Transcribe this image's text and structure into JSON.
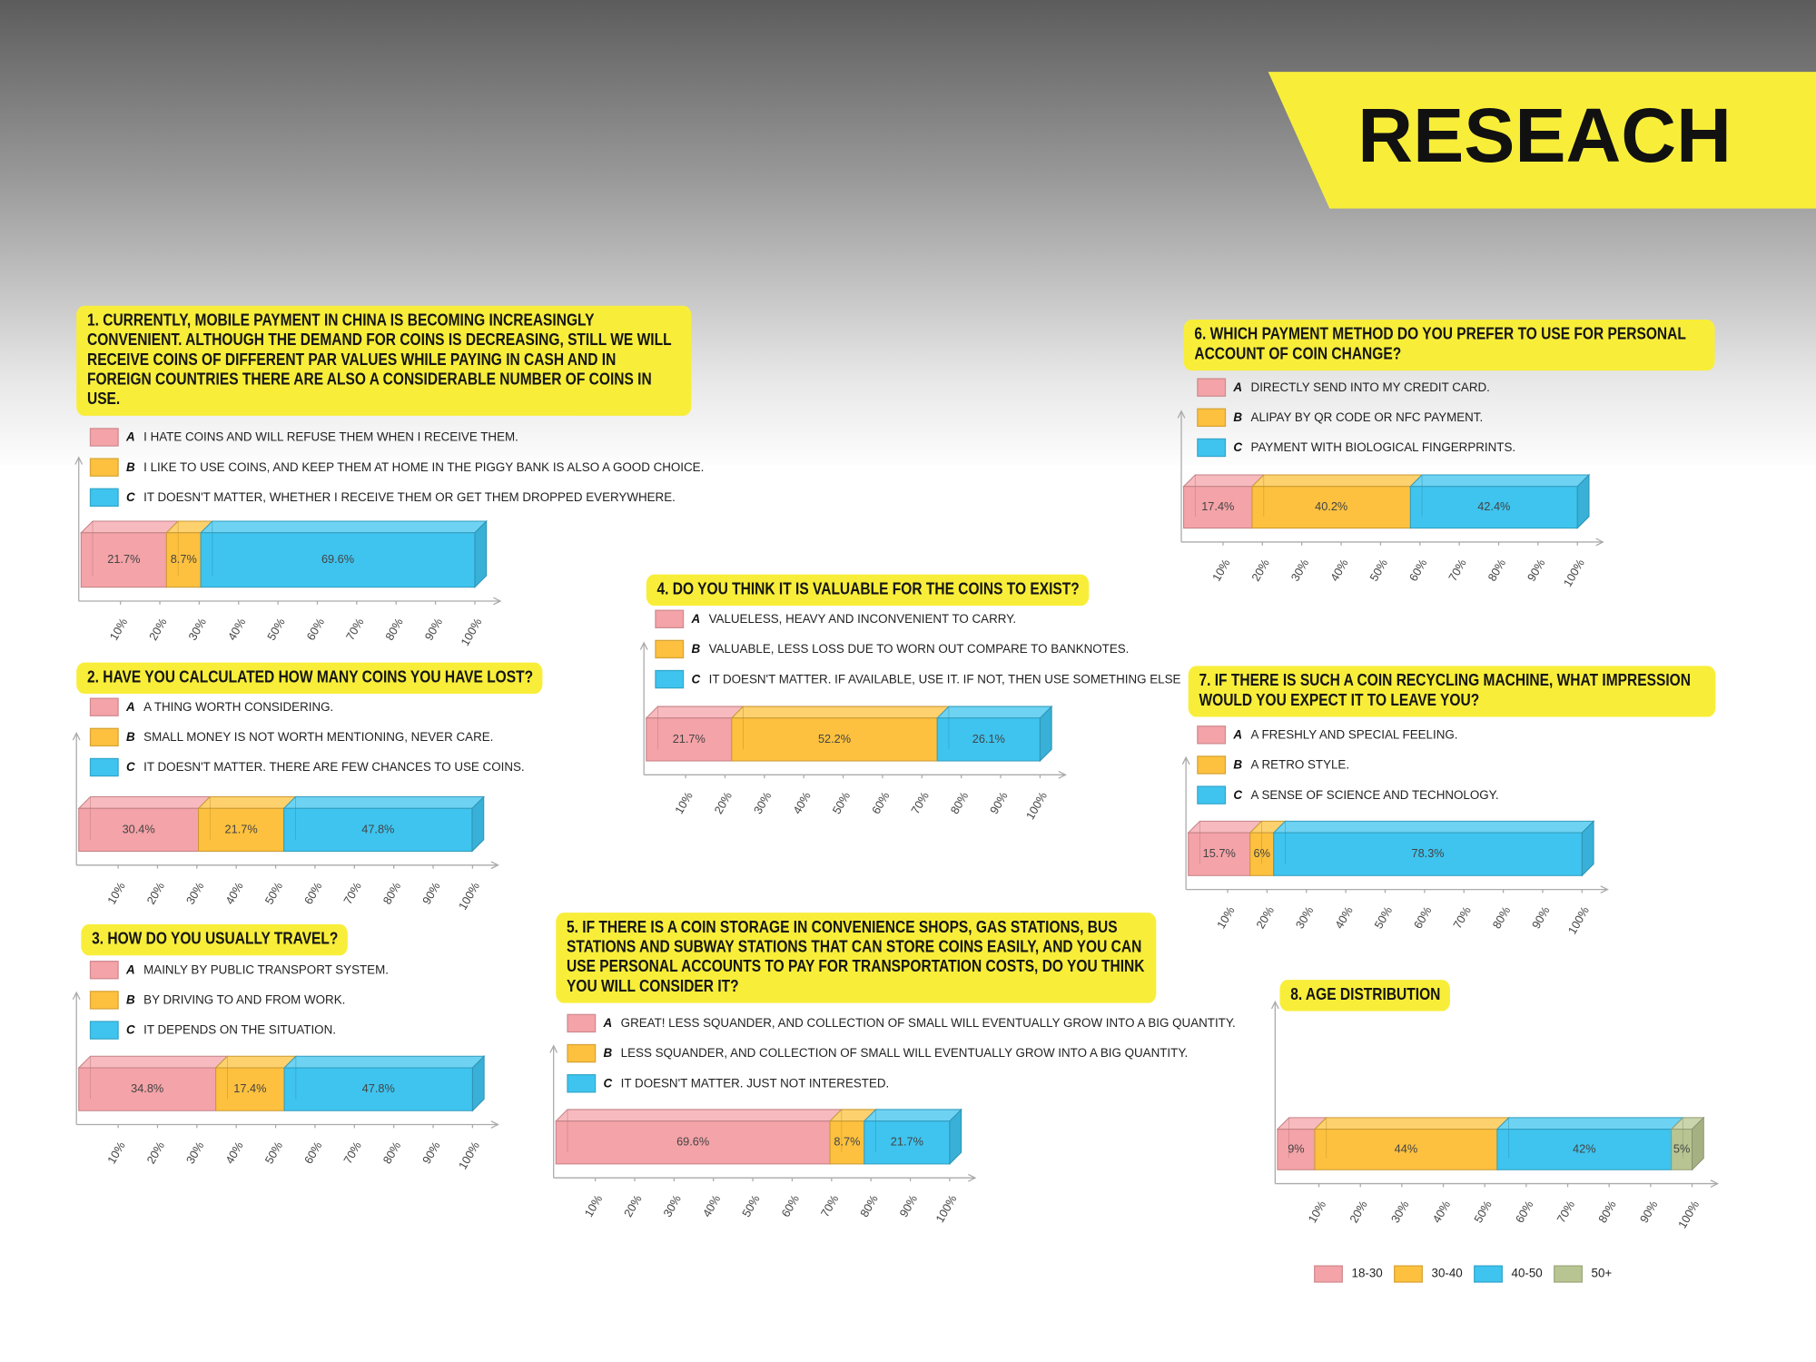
{
  "title": "RESEACH",
  "chart_data": [
    {
      "type": "bar",
      "orientation": "horizontal",
      "stacked": true,
      "title": "1. CURRENTLY, MOBILE PAYMENT IN CHINA IS BECOMING INCREASINGLY CONVENIENT. ALTHOUGH THE DEMAND FOR COINS IS DECREASING, STILL WE WILL RECEIVE COINS OF DIFFERENT PAR VALUES WHILE PAYING IN CASH AND IN FOREIGN COUNTRIES THERE ARE ALSO A CONSIDERABLE NUMBER OF COINS IN USE.",
      "xlim": [
        0,
        100
      ],
      "xticks": [
        {
          "value": 10,
          "label": "10%"
        },
        {
          "value": 20,
          "label": "20%"
        },
        {
          "value": 30,
          "label": "30%"
        },
        {
          "value": 40,
          "label": "40%"
        },
        {
          "value": 50,
          "label": "50%"
        },
        {
          "value": 60,
          "label": "60%"
        },
        {
          "value": 70,
          "label": "70%"
        },
        {
          "value": 80,
          "label": "80%"
        },
        {
          "value": 90,
          "label": "90%"
        },
        {
          "value": 100,
          "label": "100%"
        }
      ],
      "series": [
        {
          "letter": "A",
          "name": "I HATE COINS AND WILL REFUSE THEM WHEN I RECEIVE THEM.",
          "color": "#f4a3a8",
          "values": [
            21.7
          ],
          "value_labels": [
            "21.7%"
          ]
        },
        {
          "letter": "B",
          "name": "I LIKE TO USE COINS, AND KEEP THEM AT HOME IN THE PIGGY BANK IS ALSO A GOOD CHOICE.",
          "color": "#fdc13f",
          "values": [
            8.7
          ],
          "value_labels": [
            "8.7%"
          ]
        },
        {
          "letter": "C",
          "name": "IT DOESN'T MATTER, WHETHER I RECEIVE THEM OR GET THEM DROPPED EVERYWHERE.",
          "color": "#3ec4ef",
          "values": [
            69.6
          ],
          "value_labels": [
            "69.6%"
          ]
        }
      ]
    },
    {
      "type": "bar",
      "orientation": "horizontal",
      "stacked": true,
      "title": "2. HAVE YOU CALCULATED HOW MANY COINS YOU HAVE LOST?",
      "xlim": [
        0,
        100
      ],
      "xticks": [
        {
          "value": 10,
          "label": "10%"
        },
        {
          "value": 20,
          "label": "20%"
        },
        {
          "value": 30,
          "label": "30%"
        },
        {
          "value": 40,
          "label": "40%"
        },
        {
          "value": 50,
          "label": "50%"
        },
        {
          "value": 60,
          "label": "60%"
        },
        {
          "value": 70,
          "label": "70%"
        },
        {
          "value": 80,
          "label": "80%"
        },
        {
          "value": 90,
          "label": "90%"
        },
        {
          "value": 100,
          "label": "100%"
        }
      ],
      "series": [
        {
          "letter": "A",
          "name": "A THING WORTH CONSIDERING.",
          "color": "#f4a3a8",
          "values": [
            30.4
          ],
          "value_labels": [
            "30.4%"
          ]
        },
        {
          "letter": "B",
          "name": "SMALL MONEY IS NOT WORTH MENTIONING, NEVER CARE.",
          "color": "#fdc13f",
          "values": [
            21.7
          ],
          "value_labels": [
            "21.7%"
          ]
        },
        {
          "letter": "C",
          "name": "IT DOESN'T MATTER. THERE ARE FEW CHANCES TO USE COINS.",
          "color": "#3ec4ef",
          "values": [
            47.8
          ],
          "value_labels": [
            "47.8%"
          ]
        }
      ]
    },
    {
      "type": "bar",
      "orientation": "horizontal",
      "stacked": true,
      "title": "3. HOW DO YOU USUALLY TRAVEL?",
      "xlim": [
        0,
        100
      ],
      "xticks": [
        {
          "value": 10,
          "label": "10%"
        },
        {
          "value": 20,
          "label": "20%"
        },
        {
          "value": 30,
          "label": "30%"
        },
        {
          "value": 40,
          "label": "40%"
        },
        {
          "value": 50,
          "label": "50%"
        },
        {
          "value": 60,
          "label": "60%"
        },
        {
          "value": 70,
          "label": "70%"
        },
        {
          "value": 80,
          "label": "80%"
        },
        {
          "value": 90,
          "label": "90%"
        },
        {
          "value": 100,
          "label": "100%"
        }
      ],
      "series": [
        {
          "letter": "A",
          "name": "MAINLY BY PUBLIC TRANSPORT SYSTEM.",
          "color": "#f4a3a8",
          "values": [
            34.8
          ],
          "value_labels": [
            "34.8%"
          ]
        },
        {
          "letter": "B",
          "name": "BY DRIVING TO AND FROM WORK.",
          "color": "#fdc13f",
          "values": [
            17.4
          ],
          "value_labels": [
            "17.4%"
          ]
        },
        {
          "letter": "C",
          "name": "IT DEPENDS ON THE SITUATION.",
          "color": "#3ec4ef",
          "values": [
            47.8
          ],
          "value_labels": [
            "47.8%"
          ]
        }
      ]
    },
    {
      "type": "bar",
      "orientation": "horizontal",
      "stacked": true,
      "title": "4. DO YOU THINK IT IS VALUABLE FOR THE COINS TO EXIST?",
      "xlim": [
        0,
        100
      ],
      "xticks": [
        {
          "value": 10,
          "label": "10%"
        },
        {
          "value": 20,
          "label": "20%"
        },
        {
          "value": 30,
          "label": "30%"
        },
        {
          "value": 40,
          "label": "40%"
        },
        {
          "value": 50,
          "label": "50%"
        },
        {
          "value": 60,
          "label": "60%"
        },
        {
          "value": 70,
          "label": "70%"
        },
        {
          "value": 80,
          "label": "80%"
        },
        {
          "value": 90,
          "label": "90%"
        },
        {
          "value": 100,
          "label": "100%"
        }
      ],
      "series": [
        {
          "letter": "A",
          "name": "VALUELESS, HEAVY AND INCONVENIENT TO CARRY.",
          "color": "#f4a3a8",
          "values": [
            21.7
          ],
          "value_labels": [
            "21.7%"
          ]
        },
        {
          "letter": "B",
          "name": "VALUABLE, LESS LOSS DUE TO WORN OUT COMPARE TO BANKNOTES.",
          "color": "#fdc13f",
          "values": [
            52.2
          ],
          "value_labels": [
            "52.2%"
          ]
        },
        {
          "letter": "C",
          "name": "IT DOESN'T MATTER. IF AVAILABLE, USE IT. IF NOT, THEN USE SOMETHING ELSE",
          "color": "#3ec4ef",
          "values": [
            26.1
          ],
          "value_labels": [
            "26.1%"
          ]
        }
      ]
    },
    {
      "type": "bar",
      "orientation": "horizontal",
      "stacked": true,
      "title": "5. IF THERE IS A COIN STORAGE IN CONVENIENCE SHOPS, GAS STATIONS, BUS STATIONS AND SUBWAY STATIONS THAT CAN STORE COINS EASILY, AND YOU CAN USE PERSONAL ACCOUNTS TO PAY FOR TRANSPORTATION COSTS, DO YOU THINK YOU WILL CONSIDER IT?",
      "xlim": [
        0,
        100
      ],
      "xticks": [
        {
          "value": 10,
          "label": "10%"
        },
        {
          "value": 20,
          "label": "20%"
        },
        {
          "value": 30,
          "label": "30%"
        },
        {
          "value": 40,
          "label": "40%"
        },
        {
          "value": 50,
          "label": "50%"
        },
        {
          "value": 60,
          "label": "60%"
        },
        {
          "value": 70,
          "label": "70%"
        },
        {
          "value": 80,
          "label": "80%"
        },
        {
          "value": 90,
          "label": "90%"
        },
        {
          "value": 100,
          "label": "100%"
        }
      ],
      "series": [
        {
          "letter": "A",
          "name": "GREAT! LESS SQUANDER, AND COLLECTION OF SMALL WILL EVENTUALLY GROW INTO A BIG QUANTITY.",
          "color": "#f4a3a8",
          "values": [
            69.6
          ],
          "value_labels": [
            "69.6%"
          ]
        },
        {
          "letter": "B",
          "name": "LESS SQUANDER, AND COLLECTION OF SMALL WILL EVENTUALLY GROW INTO A BIG QUANTITY.",
          "color": "#fdc13f",
          "values": [
            8.7
          ],
          "value_labels": [
            "8.7%"
          ]
        },
        {
          "letter": "C",
          "name": "IT DOESN'T MATTER. JUST NOT INTERESTED.",
          "color": "#3ec4ef",
          "values": [
            21.7
          ],
          "value_labels": [
            "21.7%"
          ]
        }
      ]
    },
    {
      "type": "bar",
      "orientation": "horizontal",
      "stacked": true,
      "title": "6. WHICH PAYMENT METHOD DO YOU PREFER TO USE FOR PERSONAL ACCOUNT OF COIN CHANGE?",
      "xlim": [
        0,
        100
      ],
      "xticks": [
        {
          "value": 10,
          "label": "10%"
        },
        {
          "value": 20,
          "label": "20%"
        },
        {
          "value": 30,
          "label": "30%"
        },
        {
          "value": 40,
          "label": "40%"
        },
        {
          "value": 50,
          "label": "50%"
        },
        {
          "value": 60,
          "label": "60%"
        },
        {
          "value": 70,
          "label": "70%"
        },
        {
          "value": 80,
          "label": "80%"
        },
        {
          "value": 90,
          "label": "90%"
        },
        {
          "value": 100,
          "label": "100%"
        }
      ],
      "series": [
        {
          "letter": "A",
          "name": "DIRECTLY SEND INTO MY CREDIT CARD.",
          "color": "#f4a3a8",
          "values": [
            17.4
          ],
          "value_labels": [
            "17.4%"
          ]
        },
        {
          "letter": "B",
          "name": "ALIPAY BY QR CODE OR NFC PAYMENT.",
          "color": "#fdc13f",
          "values": [
            40.2
          ],
          "value_labels": [
            "40.2%"
          ]
        },
        {
          "letter": "C",
          "name": "PAYMENT WITH BIOLOGICAL FINGERPRINTS.",
          "color": "#3ec4ef",
          "values": [
            42.4
          ],
          "value_labels": [
            "42.4%"
          ]
        }
      ]
    },
    {
      "type": "bar",
      "orientation": "horizontal",
      "stacked": true,
      "title": "7. IF THERE IS SUCH A COIN RECYCLING MACHINE, WHAT IMPRESSION WOULD YOU EXPECT IT TO LEAVE YOU?",
      "xlim": [
        0,
        100
      ],
      "xticks": [
        {
          "value": 10,
          "label": "10%"
        },
        {
          "value": 20,
          "label": "20%"
        },
        {
          "value": 30,
          "label": "30%"
        },
        {
          "value": 40,
          "label": "40%"
        },
        {
          "value": 50,
          "label": "50%"
        },
        {
          "value": 60,
          "label": "60%"
        },
        {
          "value": 70,
          "label": "70%"
        },
        {
          "value": 80,
          "label": "80%"
        },
        {
          "value": 90,
          "label": "90%"
        },
        {
          "value": 100,
          "label": "100%"
        }
      ],
      "series": [
        {
          "letter": "A",
          "name": "A FRESHLY AND SPECIAL FEELING.",
          "color": "#f4a3a8",
          "values": [
            15.7
          ],
          "value_labels": [
            "15.7%"
          ]
        },
        {
          "letter": "B",
          "name": "A RETRO STYLE.",
          "color": "#fdc13f",
          "values": [
            6
          ],
          "value_labels": [
            "6%"
          ]
        },
        {
          "letter": "C",
          "name": "A SENSE OF SCIENCE AND TECHNOLOGY.",
          "color": "#3ec4ef",
          "values": [
            78.3
          ],
          "value_labels": [
            "78.3%"
          ]
        }
      ]
    },
    {
      "type": "bar",
      "orientation": "horizontal",
      "stacked": true,
      "legend": "bottom",
      "title": "8. AGE DISTRIBUTION",
      "xlim": [
        0,
        100
      ],
      "xticks": [
        {
          "value": 10,
          "label": "10%"
        },
        {
          "value": 20,
          "label": "20%"
        },
        {
          "value": 30,
          "label": "30%"
        },
        {
          "value": 40,
          "label": "40%"
        },
        {
          "value": 50,
          "label": "50%"
        },
        {
          "value": 60,
          "label": "60%"
        },
        {
          "value": 70,
          "label": "70%"
        },
        {
          "value": 80,
          "label": "80%"
        },
        {
          "value": 90,
          "label": "90%"
        },
        {
          "value": 100,
          "label": "100%"
        }
      ],
      "series": [
        {
          "name": "18-30",
          "color": "#f4a3a8",
          "values": [
            9
          ],
          "value_labels": [
            "9%"
          ]
        },
        {
          "name": "30-40",
          "color": "#fdc13f",
          "values": [
            44
          ],
          "value_labels": [
            "44%"
          ]
        },
        {
          "name": "40-50",
          "color": "#3ec4ef",
          "values": [
            42
          ],
          "value_labels": [
            "42%"
          ]
        },
        {
          "name": "50+",
          "color": "#b8c592",
          "values": [
            5
          ],
          "value_labels": [
            "5%"
          ]
        }
      ]
    }
  ]
}
